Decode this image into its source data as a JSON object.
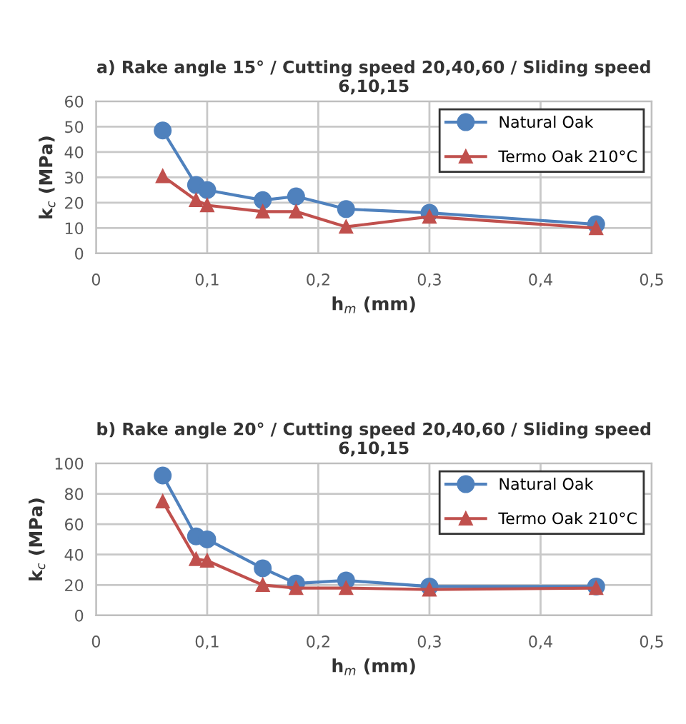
{
  "chart_data": [
    {
      "type": "line",
      "title": "a) Rake angle 15° / Cutting speed 20,40,60 / Sliding speed 6,10,15",
      "xlabel": "h$_{m}$ (mm)",
      "ylabel": "k$_{c}$ (MPa)",
      "x": [
        0.06,
        0.09,
        0.1,
        0.15,
        0.18,
        0.225,
        0.3,
        0.45
      ],
      "series": [
        {
          "name": "Natural Oak",
          "color": "#4f81bd",
          "marker": "circle",
          "values": [
            48.5,
            27,
            25,
            21,
            22.5,
            17.5,
            16,
            11.5
          ]
        },
        {
          "name": "Termo Oak 210°C",
          "color": "#c0504d",
          "marker": "triangle",
          "values": [
            30.5,
            21,
            19,
            16.5,
            16.5,
            10.5,
            14.5,
            10
          ]
        }
      ],
      "xlim": [
        0,
        0.5
      ],
      "xticks": [
        0,
        {
          "value": 0.1,
          "label": "0,1"
        },
        {
          "value": 0.2,
          "label": "0,2"
        },
        {
          "value": 0.3,
          "label": "0,3"
        },
        {
          "value": 0.4,
          "label": "0,4"
        },
        {
          "value": 0.5,
          "label": "0,5"
        }
      ],
      "ylim": [
        0,
        60
      ],
      "yticks": [
        0,
        10,
        20,
        30,
        40,
        50,
        60
      ],
      "grid": true,
      "legend": "top right"
    },
    {
      "type": "line",
      "title": "b) Rake angle 20° / Cutting speed 20,40,60 / Sliding speed 6,10,15",
      "xlabel": "h$_{m}$ (mm)",
      "ylabel": "k$_{c}$ (MPa)",
      "x": [
        0.06,
        0.09,
        0.1,
        0.15,
        0.18,
        0.225,
        0.3,
        0.45
      ],
      "series": [
        {
          "name": "Natural Oak",
          "color": "#4f81bd",
          "marker": "circle",
          "values": [
            92,
            52,
            50,
            31,
            21,
            23,
            19,
            19
          ]
        },
        {
          "name": "Termo Oak 210°C",
          "color": "#c0504d",
          "marker": "triangle",
          "values": [
            75,
            37,
            36,
            20,
            18,
            18,
            17,
            18
          ]
        }
      ],
      "xlim": [
        0,
        0.5
      ],
      "xticks": [
        0,
        {
          "value": 0.1,
          "label": "0,1"
        },
        {
          "value": 0.2,
          "label": "0,2"
        },
        {
          "value": 0.3,
          "label": "0,3"
        },
        {
          "value": 0.4,
          "label": "0,4"
        },
        {
          "value": 0.5,
          "label": "0,5"
        }
      ],
      "ylim": [
        0,
        100
      ],
      "yticks": [
        0,
        20,
        40,
        60,
        80,
        100
      ],
      "grid": true,
      "legend": "top right"
    }
  ]
}
